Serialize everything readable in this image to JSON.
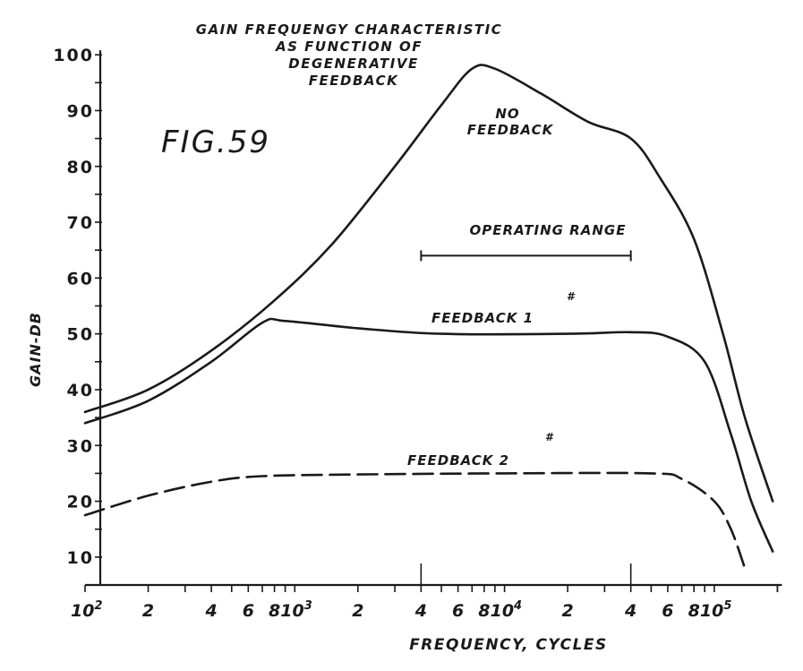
{
  "chart_data": {
    "type": "line",
    "title": [
      "GAIN FREQUENGY CHARACTERISTIC",
      "AS FUNCTION OF",
      "DEGENERATIVE",
      "FEEDBACK"
    ],
    "figure_label": "FIG.59",
    "xlabel": "FREQUENCY, CYCLES",
    "ylabel": "GAIN-DB",
    "xscale": "log",
    "xlim": [
      100,
      210000
    ],
    "ylim": [
      5,
      100
    ],
    "grid": false,
    "yticks": [
      10,
      20,
      30,
      40,
      50,
      60,
      70,
      80,
      90,
      100
    ],
    "ytick_labels": [
      "10",
      "20",
      "30",
      "40",
      "50",
      "60",
      "70",
      "80",
      "90",
      "100"
    ],
    "xticks": [
      {
        "value": 100,
        "base": "10",
        "exp": "2"
      },
      {
        "value": 200,
        "base": "2",
        "exp": ""
      },
      {
        "value": 400,
        "base": "4",
        "exp": ""
      },
      {
        "value": 600,
        "base": "6",
        "exp": ""
      },
      {
        "value": 800,
        "base": "8",
        "exp": ""
      },
      {
        "value": 1000,
        "base": "10",
        "exp": "3"
      },
      {
        "value": 2000,
        "base": "2",
        "exp": ""
      },
      {
        "value": 4000,
        "base": "4",
        "exp": ""
      },
      {
        "value": 6000,
        "base": "6",
        "exp": ""
      },
      {
        "value": 8000,
        "base": "8",
        "exp": ""
      },
      {
        "value": 10000,
        "base": "10",
        "exp": "4"
      },
      {
        "value": 20000,
        "base": "2",
        "exp": ""
      },
      {
        "value": 40000,
        "base": "4",
        "exp": ""
      },
      {
        "value": 60000,
        "base": "6",
        "exp": ""
      },
      {
        "value": 80000,
        "base": "8",
        "exp": ""
      },
      {
        "value": 100000,
        "base": "10",
        "exp": "5"
      }
    ],
    "series": [
      {
        "name": "NO FEEDBACK",
        "style": "solid",
        "x": [
          100,
          200,
          400,
          800,
          1500,
          3000,
          5000,
          7000,
          9000,
          15000,
          25000,
          40000,
          55000,
          80000,
          110000,
          140000,
          190000
        ],
        "y": [
          36,
          40,
          47,
          56,
          66,
          80,
          91,
          97.5,
          97.5,
          93,
          88,
          85,
          78,
          67,
          50,
          35,
          20
        ]
      },
      {
        "name": "FEEDBACK #1",
        "style": "solid",
        "x": [
          100,
          200,
          400,
          700,
          900,
          2000,
          5000,
          20000,
          40000,
          60000,
          90000,
          120000,
          150000,
          190000
        ],
        "y": [
          34,
          38,
          45,
          52,
          52.3,
          51,
          50,
          50,
          50.3,
          49.5,
          45,
          32,
          20,
          11
        ]
      },
      {
        "name": "FEEDBACK #2",
        "style": "dashed",
        "x": [
          100,
          200,
          400,
          700,
          2000,
          10000,
          50000,
          70000,
          100000,
          120000,
          140000
        ],
        "y": [
          17.5,
          21,
          23.5,
          24.5,
          24.8,
          25,
          25,
          24,
          20,
          15,
          8
        ]
      }
    ],
    "annotations": {
      "no_feedback": [
        "NO",
        "FEEDBACK"
      ],
      "operating_range": {
        "label": "OPERATING RANGE",
        "from": 4000,
        "to": 40000,
        "y": 64
      },
      "feedback1": {
        "text": "FEEDBACK 1",
        "mark": "#"
      },
      "feedback2": {
        "text": "FEEDBACK 2",
        "mark": "#"
      }
    }
  }
}
